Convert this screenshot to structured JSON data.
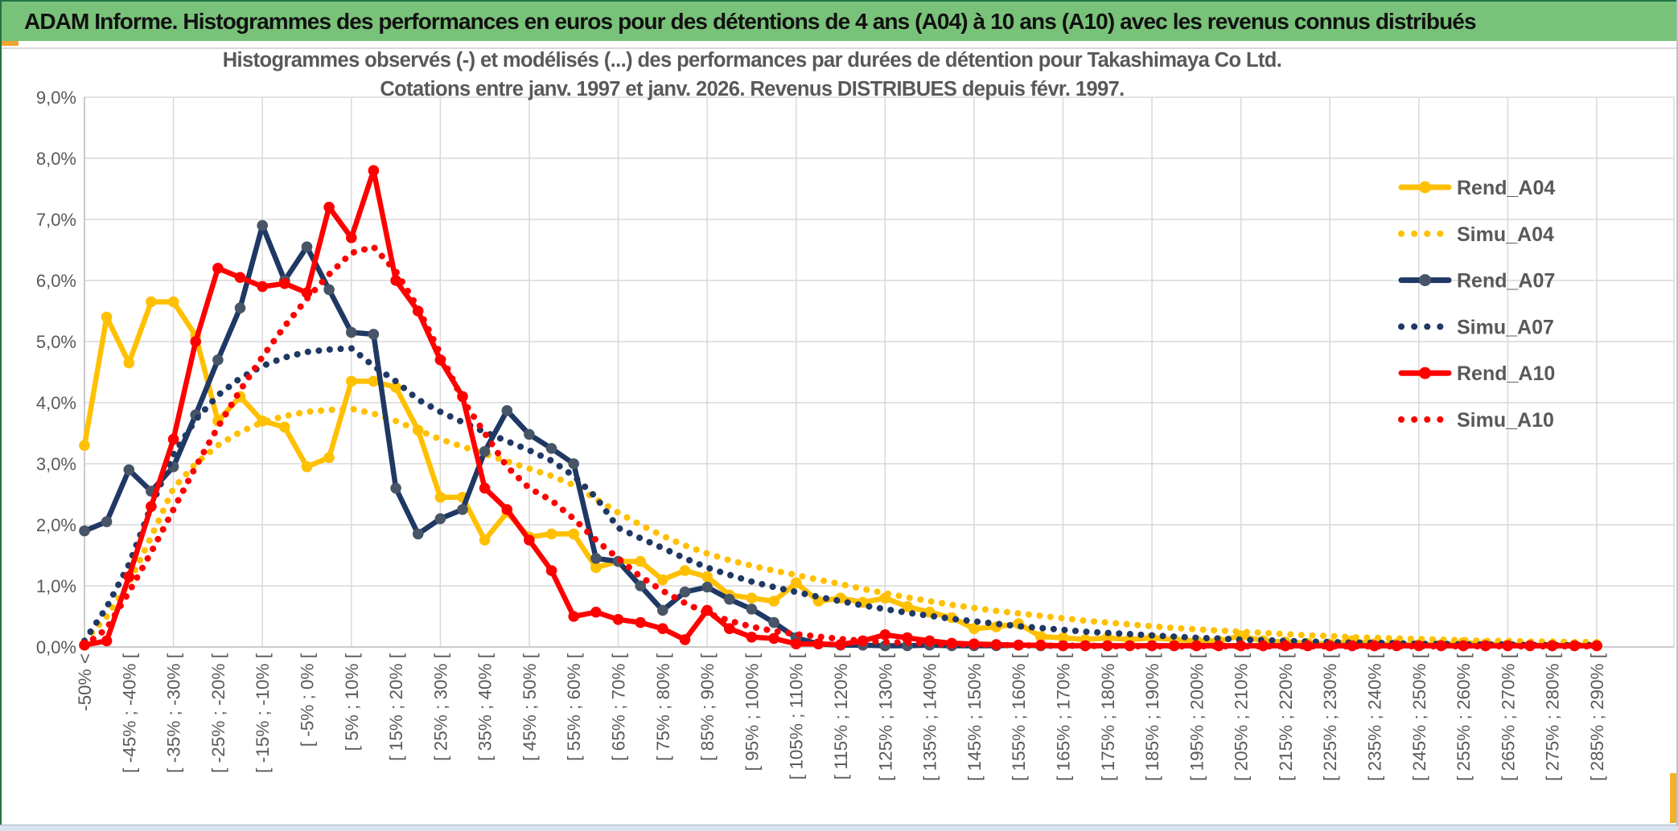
{
  "window": {
    "header_title": "ADAM Informe. Histogrammes des performances en euros pour des détentions de 4 ans (A04) à 10 ans (A10) avec les revenus connus distribués",
    "colors": {
      "header_bg": "#79c279",
      "frame_green": "#217346",
      "accent_gold": "#efa52d"
    }
  },
  "chart_data": {
    "type": "line",
    "title_line1": "Histogrammes observés (-) et modélisés (...) des performances par durées de détention pour Takashimaya Co Ltd.",
    "title_line2": "Cotations entre janv. 1997 et janv. 2026. Revenus DISTRIBUES depuis févr. 1997.",
    "ylim": [
      0,
      9
    ],
    "ytick_labels": [
      "0,0%",
      "1,0%",
      "2,0%",
      "3,0%",
      "4,0%",
      "5,0%",
      "6,0%",
      "7,0%",
      "8,0%",
      "9,0%"
    ],
    "grid": true,
    "legend_position": "right-inside",
    "x_bin_width_pct": 5,
    "x_label_every": 2,
    "x_labels": [
      "-50% <",
      "[ -45% ; -40% [",
      "[ -35% ; -30% [",
      "[ -25% ; -20% [",
      "[ -15% ; -10% [",
      "[ -5% ; 0% [",
      "[ 5% ; 10% [",
      "[ 15% ; 20% [",
      "[ 25% ; 30% [",
      "[ 35% ; 40% [",
      "[ 45% ; 50% [",
      "[ 55% ; 60% [",
      "[ 65% ; 70% [",
      "[ 75% ; 80% [",
      "[ 85% ; 90% [",
      "[ 95% ; 100% [",
      "[ 105% ; 110% [",
      "[ 115% ; 120% [",
      "[ 125% ; 130% [",
      "[ 135% ; 140% [",
      "[ 145% ; 150% [",
      "[ 155% ; 160% [",
      "[ 165% ; 170% [",
      "[ 175% ; 180% [",
      "[ 185% ; 190% [",
      "[ 195% ; 200% [",
      "[ 205% ; 210% [",
      "[ 215% ; 220% [",
      "[ 225% ; 230% [",
      "[ 235% ; 240% [",
      "[ 245% ; 250% [",
      "[ 255% ; 260% [",
      "[ 265% ; 270% [",
      "[ 275% ; 280% [",
      "[ 285% ; 290% ["
    ],
    "series": [
      {
        "name": "Rend_A04",
        "style": "solid",
        "color": "#FFC000",
        "marker_color": "#FFC000",
        "values": [
          3.3,
          5.4,
          4.65,
          5.65,
          5.65,
          5.1,
          3.7,
          4.1,
          3.7,
          3.6,
          2.95,
          3.1,
          4.35,
          4.35,
          4.25,
          3.55,
          2.45,
          2.45,
          1.75,
          2.2,
          1.8,
          1.85,
          1.85,
          1.3,
          1.4,
          1.4,
          1.1,
          1.25,
          1.15,
          0.85,
          0.8,
          0.75,
          1.05,
          0.75,
          0.8,
          0.73,
          0.8,
          0.66,
          0.57,
          0.48,
          0.3,
          0.33,
          0.38,
          0.17,
          0.15,
          0.12,
          0.15,
          0.12,
          0.15,
          0.12,
          0.1,
          0.1,
          0.18,
          0.1,
          0.08,
          0.06,
          0.05,
          0.1,
          0.05,
          0.05,
          0.04,
          0.04,
          0.07,
          0.05,
          0.04,
          0.03,
          0.03,
          0.03,
          0.03
        ]
      },
      {
        "name": "Simu_A04",
        "style": "dotted",
        "color": "#FFC000",
        "values": [
          0.1,
          0.5,
          1.05,
          1.8,
          2.6,
          3.0,
          3.3,
          3.52,
          3.68,
          3.78,
          3.85,
          3.88,
          3.9,
          3.82,
          3.7,
          3.55,
          3.4,
          3.28,
          3.16,
          3.04,
          2.92,
          2.8,
          2.65,
          2.42,
          2.2,
          2.0,
          1.82,
          1.66,
          1.53,
          1.42,
          1.33,
          1.25,
          1.18,
          1.1,
          1.03,
          0.95,
          0.88,
          0.81,
          0.75,
          0.69,
          0.64,
          0.59,
          0.55,
          0.51,
          0.47,
          0.43,
          0.4,
          0.37,
          0.34,
          0.31,
          0.29,
          0.27,
          0.25,
          0.23,
          0.21,
          0.19,
          0.18,
          0.16,
          0.15,
          0.14,
          0.13,
          0.12,
          0.11,
          0.1,
          0.1,
          0.09,
          0.09,
          0.08,
          0.08
        ]
      },
      {
        "name": "Rend_A07",
        "style": "solid",
        "color": "#1F3864",
        "marker_color": "#485567",
        "values": [
          1.9,
          2.05,
          2.9,
          2.55,
          2.95,
          3.8,
          4.7,
          5.55,
          6.9,
          6.0,
          6.55,
          5.85,
          5.15,
          5.12,
          2.6,
          1.85,
          2.1,
          2.25,
          3.2,
          3.87,
          3.48,
          3.25,
          3.0,
          1.45,
          1.4,
          1.0,
          0.6,
          0.9,
          0.98,
          0.78,
          0.62,
          0.4,
          0.15,
          0.05,
          0.03,
          0.03,
          0.02,
          0.02,
          0.03,
          0.02,
          0.02,
          0.02,
          0.03,
          0.02,
          0.02,
          0.02,
          0.02,
          0.02,
          0.02,
          0.02,
          0.02,
          0.02,
          0.02,
          0.02,
          0.02,
          0.02,
          0.02,
          0.02,
          0.02,
          0.02,
          0.02,
          0.02,
          0.02,
          0.02,
          0.02,
          0.02,
          0.02,
          0.02,
          0.02
        ]
      },
      {
        "name": "Simu_A07",
        "style": "dotted",
        "color": "#1F3864",
        "values": [
          0.1,
          0.65,
          1.35,
          2.3,
          3.15,
          3.72,
          4.12,
          4.4,
          4.6,
          4.74,
          4.83,
          4.87,
          4.89,
          4.6,
          4.35,
          4.05,
          3.85,
          3.68,
          3.52,
          3.37,
          3.22,
          3.05,
          2.8,
          2.45,
          1.95,
          1.78,
          1.62,
          1.45,
          1.3,
          1.18,
          1.07,
          0.98,
          0.9,
          0.82,
          0.75,
          0.68,
          0.62,
          0.56,
          0.51,
          0.46,
          0.42,
          0.38,
          0.34,
          0.31,
          0.28,
          0.25,
          0.23,
          0.21,
          0.19,
          0.17,
          0.15,
          0.14,
          0.12,
          0.11,
          0.1,
          0.09,
          0.08,
          0.07,
          0.07,
          0.06,
          0.05,
          0.05,
          0.04,
          0.04,
          0.04,
          0.03,
          0.03,
          0.03,
          0.03
        ]
      },
      {
        "name": "Rend_A10",
        "style": "solid",
        "color": "#FF0000",
        "marker_color": "#FF0000",
        "values": [
          0.03,
          0.1,
          1.15,
          2.3,
          3.4,
          5.0,
          6.2,
          6.05,
          5.9,
          5.95,
          5.8,
          7.2,
          6.7,
          7.8,
          6.0,
          5.5,
          4.7,
          4.1,
          2.6,
          2.25,
          1.75,
          1.25,
          0.5,
          0.57,
          0.45,
          0.4,
          0.3,
          0.12,
          0.6,
          0.3,
          0.16,
          0.14,
          0.05,
          0.05,
          0.04,
          0.1,
          0.2,
          0.15,
          0.1,
          0.06,
          0.05,
          0.04,
          0.03,
          0.03,
          0.02,
          0.02,
          0.02,
          0.02,
          0.02,
          0.02,
          0.02,
          0.02,
          0.02,
          0.02,
          0.02,
          0.02,
          0.02,
          0.02,
          0.02,
          0.02,
          0.02,
          0.02,
          0.02,
          0.02,
          0.02,
          0.02,
          0.02,
          0.02,
          0.02
        ]
      },
      {
        "name": "Simu_A10",
        "style": "dotted",
        "color": "#FF0000",
        "values": [
          0.02,
          0.3,
          0.9,
          1.55,
          2.25,
          2.95,
          3.6,
          4.2,
          4.75,
          5.25,
          5.7,
          6.1,
          6.45,
          6.55,
          6.15,
          5.55,
          4.8,
          4.05,
          3.5,
          2.95,
          2.6,
          2.4,
          2.1,
          1.75,
          1.45,
          1.15,
          0.92,
          0.72,
          0.55,
          0.43,
          0.33,
          0.26,
          0.21,
          0.17,
          0.13,
          0.1,
          0.08,
          0.07,
          0.05,
          0.04,
          0.04,
          0.03,
          0.03,
          0.02,
          0.02,
          0.02,
          0.01,
          0.01,
          0.01,
          0.01,
          0.01,
          0.01,
          0.01,
          0.01,
          0.01,
          0.01,
          0.01,
          0.01,
          0.01,
          0.01,
          0.01,
          0.01,
          0.01,
          0.01,
          0.01,
          0.01,
          0.01,
          0.01,
          0.01
        ]
      }
    ]
  }
}
